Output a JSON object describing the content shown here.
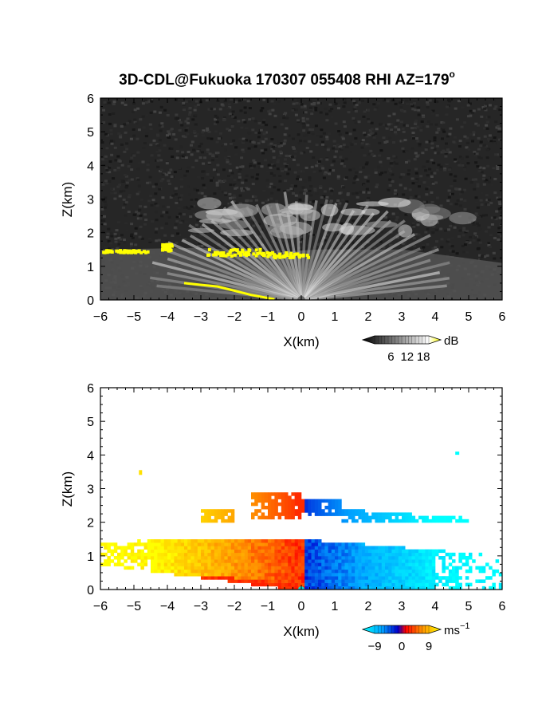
{
  "title_main": "3D-CDL@Fukuoka 170307 055408 RHI AZ=179",
  "title_sup": "o",
  "chart_data": [
    {
      "type": "heatmap",
      "name": "backscatter",
      "xlabel": "X(km)",
      "ylabel": "Z(km)",
      "xlim": [
        -6,
        6
      ],
      "ylim": [
        0,
        6
      ],
      "xticks": [
        "-6",
        "-5",
        "-4",
        "-3",
        "-2",
        "-1",
        "0",
        "1",
        "2",
        "3",
        "4",
        "5",
        "6"
      ],
      "yticks": [
        "0",
        "1",
        "2",
        "3",
        "4",
        "5",
        "6"
      ],
      "colorbar": {
        "unit": "dB",
        "ticks": [
          "6",
          "12",
          "18"
        ],
        "range": [
          0,
          20
        ],
        "colors": [
          "#000000",
          "#ffffff",
          "#ffff00"
        ]
      },
      "features": {
        "background": "noise ~ #2a2a2a",
        "aerosol_layer_top_km": 1.5,
        "cloud_base_km": 1.35,
        "upper_layer_km": [
          2.2,
          3.0
        ],
        "saturation_color": "#ffff00"
      }
    },
    {
      "type": "heatmap",
      "name": "doppler_velocity",
      "xlabel": "X(km)",
      "ylabel": "Z(km)",
      "xlim": [
        -6,
        6
      ],
      "ylim": [
        0,
        6
      ],
      "xticks": [
        "-6",
        "-5",
        "-4",
        "-3",
        "-2",
        "-1",
        "0",
        "1",
        "2",
        "3",
        "4",
        "5",
        "6"
      ],
      "yticks": [
        "0",
        "1",
        "2",
        "3",
        "4",
        "5",
        "6"
      ],
      "colorbar": {
        "unit": "ms",
        "unit_sup": "−1",
        "ticks": [
          "−9",
          "0",
          "9"
        ],
        "range": [
          -9,
          9
        ]
      },
      "features": {
        "sign_change_x_km": 0.1,
        "negative_side": "left, +3 to +9 m/s (red-orange-yellow)",
        "positive_side": "right, -3 to -9 m/s (blue-cyan)"
      }
    }
  ]
}
